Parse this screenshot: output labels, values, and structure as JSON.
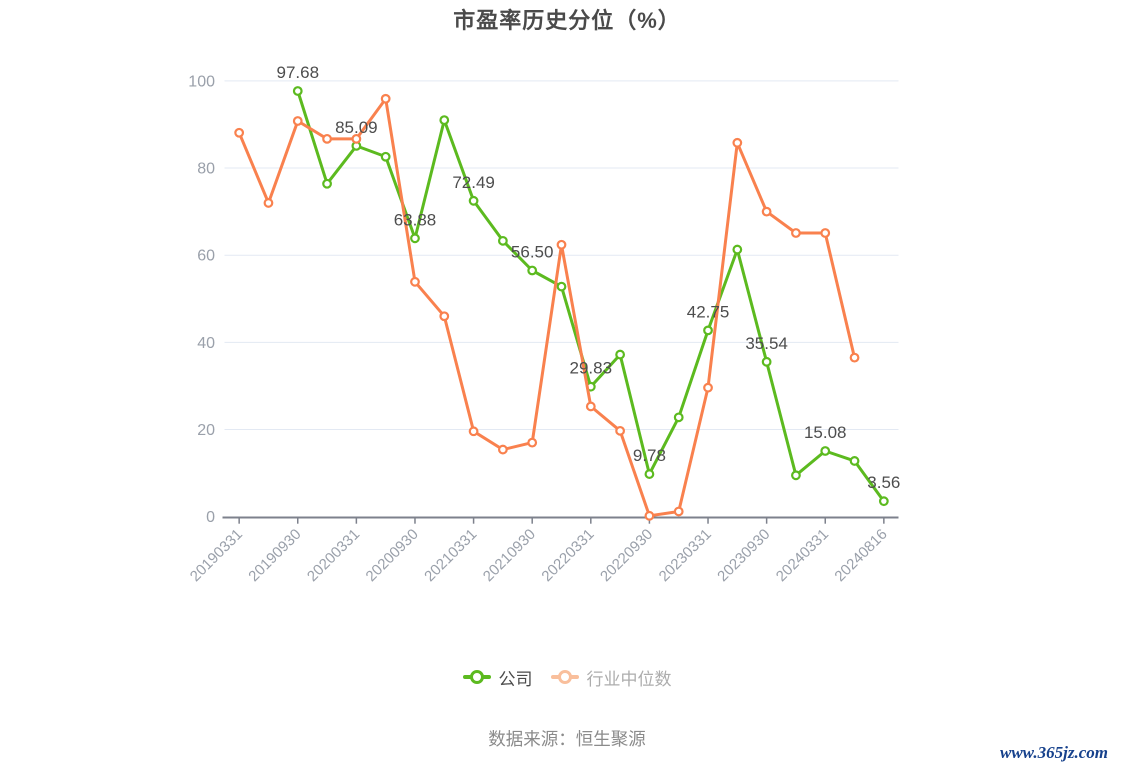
{
  "title": "市盈率历史分位（%）",
  "source_note": "数据来源：恒生聚源",
  "watermark": "www.365jz.com",
  "legend": [
    {
      "label": "公司",
      "color": "#5CBA1F",
      "text_color": "#4A4A4A"
    },
    {
      "label": "行业中位数",
      "color": "#F9BF9C",
      "text_color": "#ADADAD"
    }
  ],
  "colors": {
    "company_line": "#5CBA1F",
    "industry_line": "#F9814E",
    "grid_line": "#E3E9F3",
    "axis_line": "#7D818C",
    "axis_label": "#9AA0AA",
    "data_label": "#4D4D4D",
    "title": "#4A4A4A",
    "source_text": "#8B8B8B",
    "watermark": "#16418C"
  },
  "chart_data": {
    "type": "line",
    "title": "市盈率历史分位（%）",
    "x_tick_labels": [
      "20190331",
      "20190930",
      "20200331",
      "20200930",
      "20210331",
      "20210930",
      "20220331",
      "20220930",
      "20230331",
      "20230930",
      "20240331",
      "20240816"
    ],
    "n_points": 23,
    "x_layout_note": "23 quarterly points; axis tick labels shown at every 2nd point (even indices)",
    "ylim": [
      0,
      100
    ],
    "y_ticks": [
      0,
      20,
      40,
      60,
      80,
      100
    ],
    "grid": true,
    "legend_position": "bottom",
    "series": [
      {
        "name": "公司",
        "color": "#5CBA1F",
        "values": [
          null,
          null,
          97.68,
          76.4,
          85.09,
          82.6,
          63.88,
          91.0,
          72.49,
          63.3,
          56.5,
          52.8,
          29.83,
          37.2,
          9.78,
          22.8,
          42.75,
          61.3,
          35.54,
          9.5,
          15.08,
          12.8,
          3.56
        ],
        "point_labels": [
          {
            "i": 2,
            "text": "97.68"
          },
          {
            "i": 4,
            "text": "85.09"
          },
          {
            "i": 6,
            "text": "63.88"
          },
          {
            "i": 8,
            "text": "72.49"
          },
          {
            "i": 10,
            "text": "56.50"
          },
          {
            "i": 12,
            "text": "29.83"
          },
          {
            "i": 14,
            "text": "9.78"
          },
          {
            "i": 16,
            "text": "42.75"
          },
          {
            "i": 18,
            "text": "35.54"
          },
          {
            "i": 20,
            "text": "15.08"
          },
          {
            "i": 22,
            "text": "3.56"
          }
        ]
      },
      {
        "name": "行业中位数",
        "color": "#F9814E",
        "values": [
          88.1,
          72.0,
          90.8,
          86.7,
          86.7,
          95.9,
          53.9,
          46.0,
          19.6,
          15.4,
          17.0,
          62.4,
          25.3,
          19.7,
          0.2,
          1.2,
          29.6,
          85.8,
          70.0,
          65.1,
          65.1,
          36.5,
          null
        ]
      }
    ]
  }
}
